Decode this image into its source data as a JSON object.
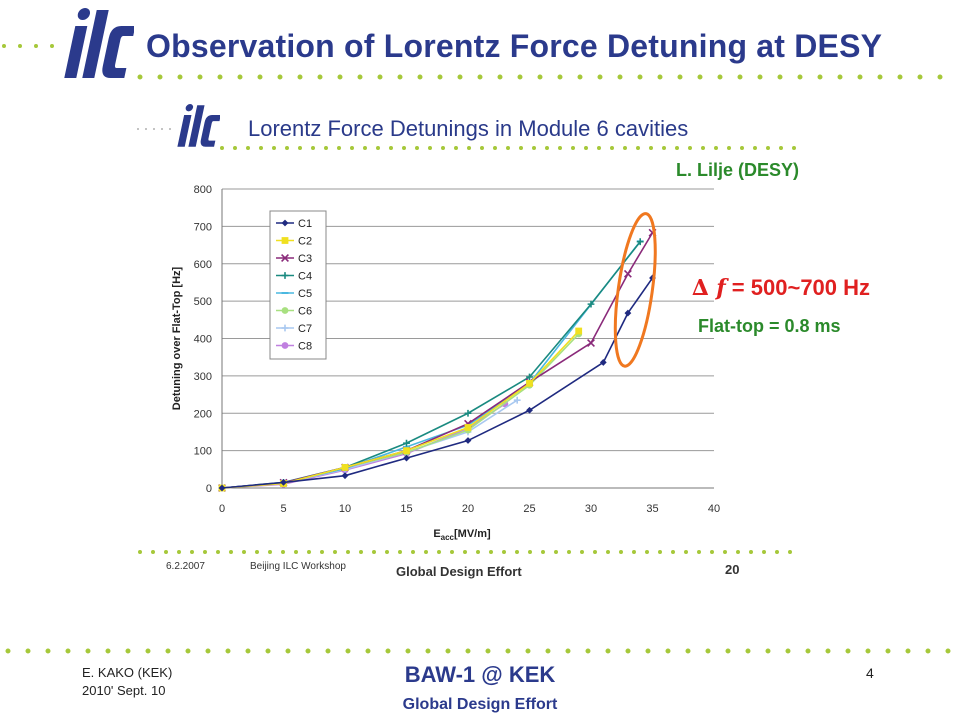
{
  "slide": {
    "title": "Observation of Lorentz Force Detuning at DESY",
    "logo_text": "ilc",
    "credit": "L. Lilje (DESY)",
    "detuning_prefix": "∆ f",
    "detuning_value": " = 500~700 Hz",
    "flattop": "Flat-top = 0.8 ms"
  },
  "inner_slide": {
    "title": "Lorentz Force Detunings in Module 6 cavities",
    "footer_date": "6.2.2007",
    "footer_event": "Beijing ILC Workshop",
    "footer_center": "Global Design Effort",
    "footer_page": "20"
  },
  "footer": {
    "author": "E. KAKO (KEK)",
    "date": "2010' Sept. 10",
    "conference": "BAW-1 @ KEK",
    "organization": "Global Design Effort",
    "page": "4"
  },
  "colors": {
    "title": "#2b3a8c",
    "accent_red": "#e02020",
    "accent_green": "#2b8a2b",
    "highlight_ellipse": "#f07820",
    "dots_green": "#a6c83a"
  },
  "chart_data": {
    "type": "line",
    "xlabel": "E",
    "xlabel_sub": "acc",
    "xlabel_unit": "[MV/m]",
    "ylabel": "Detuning over Flat-Top [Hz]",
    "xlim": [
      0,
      40
    ],
    "ylim": [
      0,
      800
    ],
    "xticks": [
      "0",
      "5",
      "10",
      "15",
      "20",
      "25",
      "30",
      "35",
      "40"
    ],
    "yticks": [
      "0",
      "100",
      "200",
      "300",
      "400",
      "500",
      "600",
      "700",
      "800"
    ],
    "grid": true,
    "legend_position": "top-left",
    "series": [
      {
        "name": "C1",
        "color": "#1f2a80",
        "marker": "diamond",
        "x": [
          0,
          5,
          10,
          15,
          20,
          25,
          31,
          33,
          35
        ],
        "y": [
          0,
          15,
          33,
          80,
          127,
          208,
          336,
          468,
          562
        ]
      },
      {
        "name": "C2",
        "color": "#f0e020",
        "marker": "square",
        "x": [
          0,
          5,
          10,
          15,
          20,
          25,
          29
        ],
        "y": [
          0,
          12,
          55,
          100,
          162,
          280,
          420
        ]
      },
      {
        "name": "C3",
        "color": "#8a2a7a",
        "marker": "x",
        "x": [
          0,
          5,
          10,
          15,
          20,
          25,
          30,
          33,
          35
        ],
        "y": [
          0,
          14,
          55,
          100,
          172,
          283,
          388,
          573,
          683
        ]
      },
      {
        "name": "C4",
        "color": "#1a8a80",
        "marker": "plus",
        "x": [
          0,
          5,
          10,
          15,
          20,
          25,
          30,
          34
        ],
        "y": [
          0,
          15,
          55,
          120,
          200,
          297,
          492,
          659
        ]
      },
      {
        "name": "C5",
        "color": "#4ab8e0",
        "marker": "dash",
        "x": [
          0,
          5,
          10,
          15,
          20,
          25,
          34
        ],
        "y": [
          0,
          14,
          52,
          110,
          168,
          280,
          660
        ]
      },
      {
        "name": "C6",
        "color": "#a8e080",
        "marker": "circle",
        "x": [
          0,
          5,
          10,
          15,
          20,
          25,
          29
        ],
        "y": [
          0,
          13,
          55,
          95,
          155,
          275,
          412
        ]
      },
      {
        "name": "C7",
        "color": "#a8c8f0",
        "marker": "plus",
        "x": [
          0,
          5,
          10,
          15,
          20,
          24
        ],
        "y": [
          0,
          13,
          50,
          96,
          150,
          235
        ]
      },
      {
        "name": "C8",
        "color": "#c080e0",
        "marker": "circle",
        "x": [
          0,
          5,
          10,
          15,
          20,
          23
        ],
        "y": [
          0,
          10,
          48,
          92,
          160,
          225
        ]
      }
    ]
  }
}
